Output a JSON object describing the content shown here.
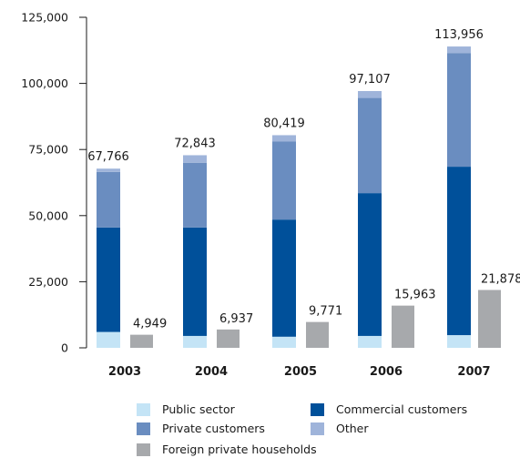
{
  "chart_data": {
    "type": "bar",
    "stacked": true,
    "categories": [
      "2003",
      "2004",
      "2005",
      "2006",
      "2007"
    ],
    "ylim": [
      0,
      125000
    ],
    "yticks": [
      0,
      25000,
      50000,
      75000,
      100000,
      125000
    ],
    "ytick_labels": [
      "0",
      "25,000",
      "50,000",
      "75,000",
      "100,000",
      "125,000"
    ],
    "grid": false,
    "legend_position": "bottom",
    "stack_series": [
      {
        "name": "Public sector",
        "color": "#c4e4f6",
        "values": [
          6000,
          4500,
          4200,
          4500,
          4800
        ]
      },
      {
        "name": "Commercial customers",
        "color": "#00509a",
        "values": [
          39500,
          41000,
          44300,
          54000,
          63700
        ]
      },
      {
        "name": "Private customers",
        "color": "#6a8dc0",
        "values": [
          21000,
          24500,
          29500,
          36000,
          43000
        ]
      },
      {
        "name": "Other",
        "color": "#9fb4da",
        "values": [
          1266,
          2843,
          2419,
          2607,
          2456
        ]
      }
    ],
    "stack_totals": [
      67766,
      72843,
      80419,
      97107,
      113956
    ],
    "stack_total_labels": [
      "67,766",
      "72,843",
      "80,419",
      "97,107",
      "113,956"
    ],
    "side_series": {
      "name": "Foreign private households",
      "color": "#a7a9ac",
      "values": [
        4949,
        6937,
        9771,
        15963,
        21878
      ],
      "labels": [
        "4,949",
        "6,937",
        "9,771",
        "15,963",
        "21,878"
      ]
    },
    "legend": [
      {
        "label": "Public sector",
        "color": "#c4e4f6"
      },
      {
        "label": "Commercial customers",
        "color": "#00509a"
      },
      {
        "label": "Private customers",
        "color": "#6a8dc0"
      },
      {
        "label": "Other",
        "color": "#9fb4da"
      },
      {
        "label": "Foreign private households",
        "color": "#a7a9ac"
      }
    ]
  }
}
